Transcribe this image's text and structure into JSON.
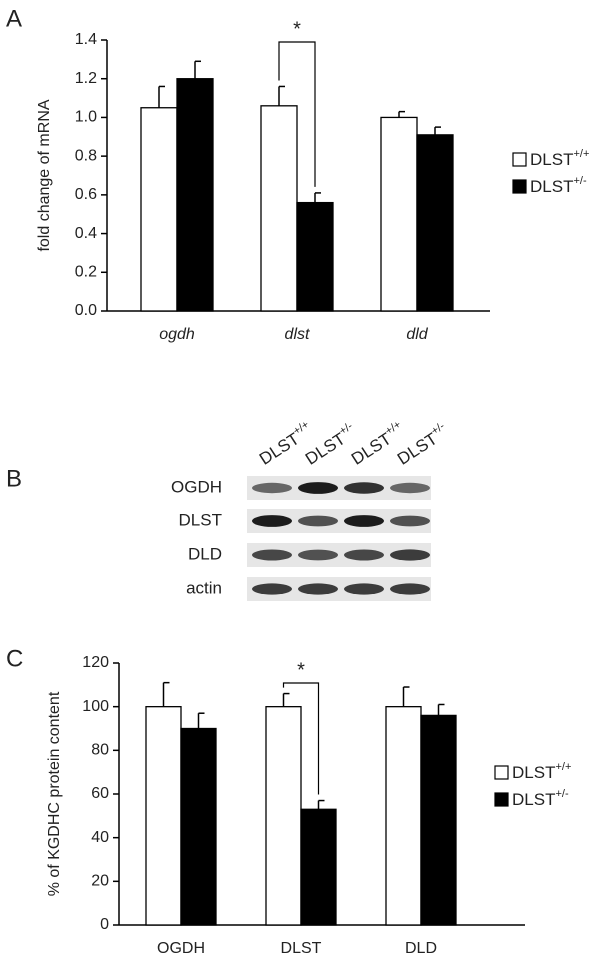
{
  "chart_data": [
    {
      "type": "bar",
      "panel": "A",
      "y_label": "fold change of mRNA",
      "categories": [
        "ogdh",
        "dlst",
        "dld"
      ],
      "series": [
        {
          "name": "DLST+/+",
          "color": "#ffffff",
          "values": [
            1.05,
            1.06,
            1.0
          ],
          "errors": [
            0.11,
            0.1,
            0.03
          ]
        },
        {
          "name": "DLST+/-",
          "color": "#000000",
          "values": [
            1.2,
            0.56,
            0.91
          ],
          "errors": [
            0.09,
            0.05,
            0.04
          ]
        }
      ],
      "ylim": [
        0,
        1.4
      ],
      "yticks": [
        {
          "value": 0,
          "label": "0.0"
        },
        0.2,
        0.4,
        0.6,
        0.8,
        {
          "value": 1,
          "label": "1.0"
        },
        1.2,
        1.4
      ],
      "annotations": [
        "*"
      ],
      "grid": false
    },
    {
      "type": "bar",
      "panel": "C",
      "y_label": "% of KGDHC protein content",
      "categories": [
        "OGDH",
        "DLST",
        "DLD"
      ],
      "series": [
        {
          "name": "DLST+/+",
          "color": "#ffffff",
          "values": [
            100,
            100,
            100
          ],
          "errors": [
            11,
            6,
            9
          ]
        },
        {
          "name": "DLST+/-",
          "color": "#000000",
          "values": [
            90,
            53,
            96
          ],
          "errors": [
            7,
            4,
            5
          ]
        }
      ],
      "ylim": [
        0,
        120
      ],
      "yticks": [
        0,
        20,
        40,
        60,
        80,
        100,
        120
      ],
      "annotations": [
        "*"
      ],
      "grid": false
    }
  ],
  "blot": {
    "panel": "B",
    "lanes": [
      "DLST+/+",
      "DLST+/-",
      "DLST+/+",
      "DLST+/-"
    ],
    "rows": [
      "OGDH",
      "DLST",
      "DLD",
      "actin"
    ]
  }
}
